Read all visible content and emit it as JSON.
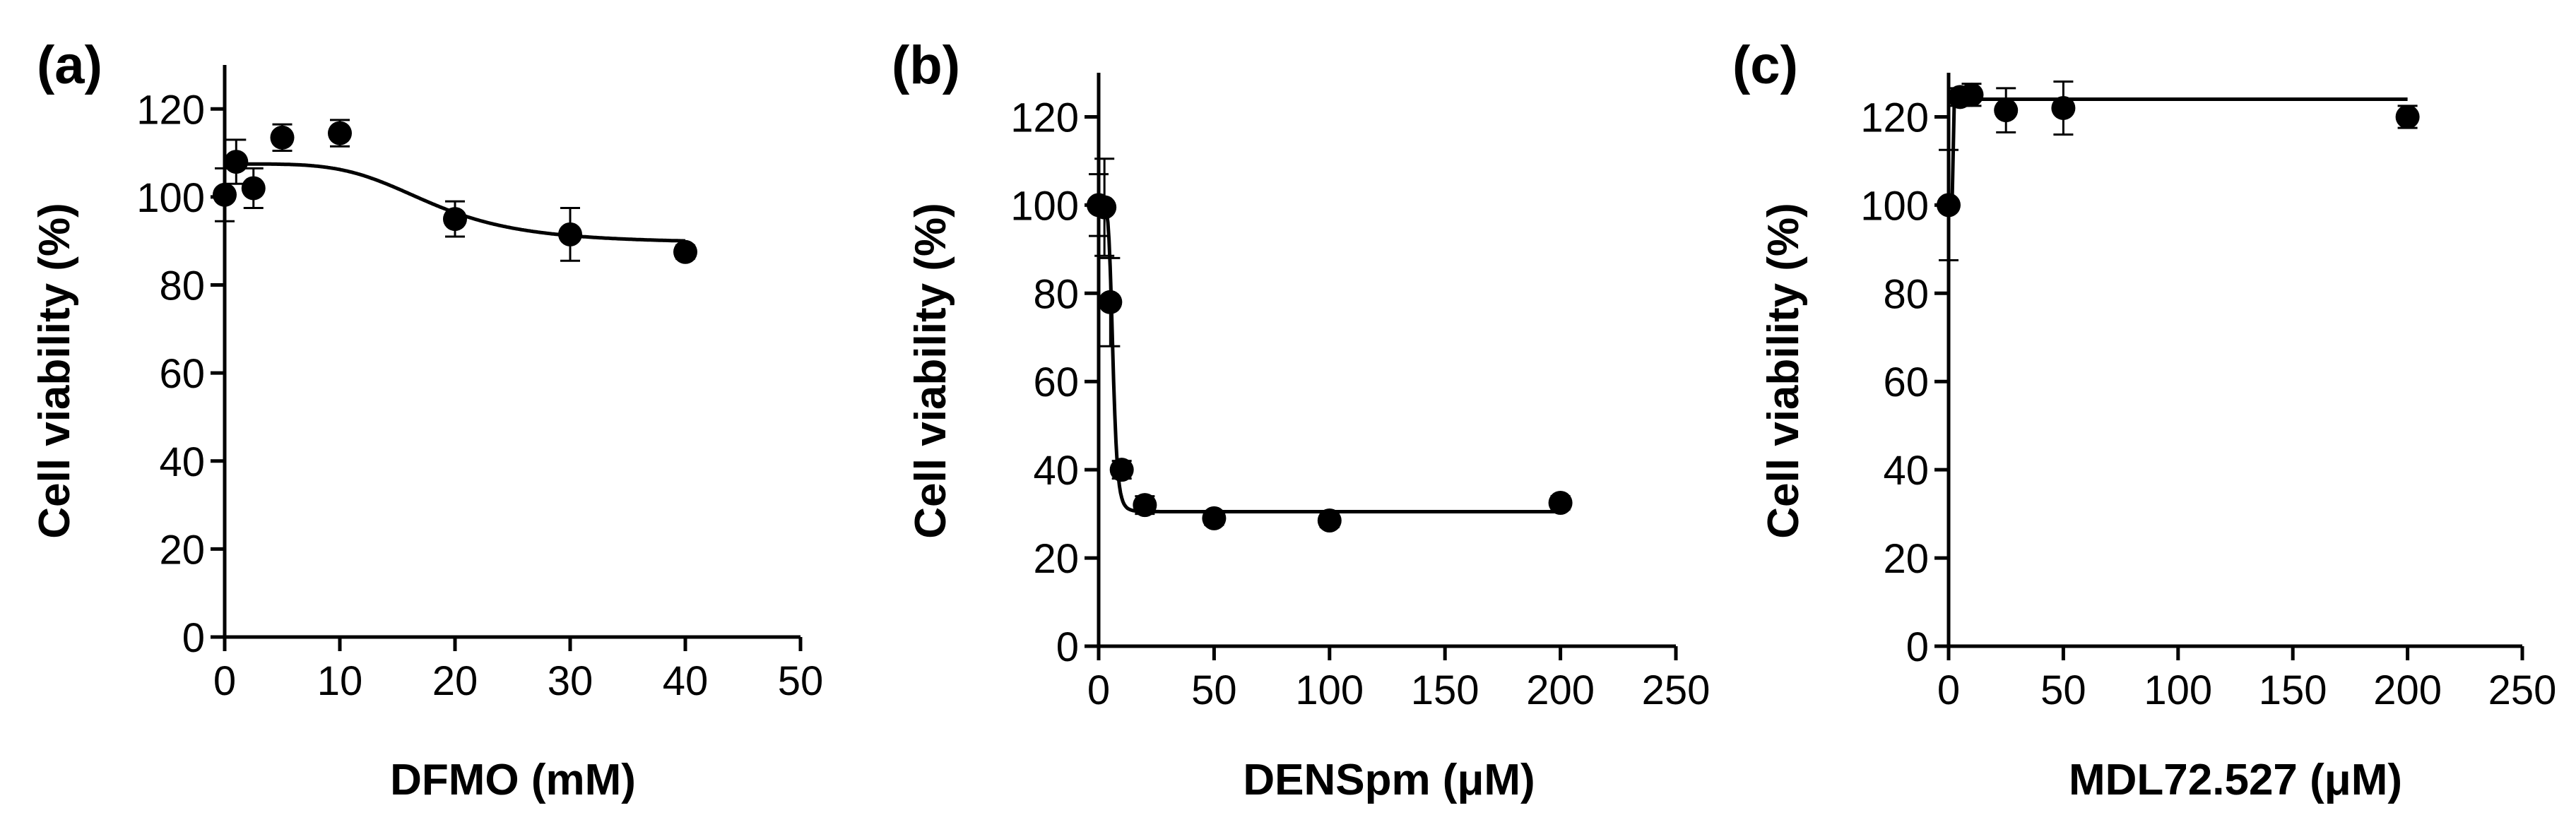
{
  "chart_data": [
    {
      "type": "scatter",
      "panel": "(a)",
      "xlabel": "DFMO (mM)",
      "ylabel": "Cell viability (%)",
      "xlim": [
        0,
        50
      ],
      "ylim": [
        0,
        130
      ],
      "xticks": [
        0,
        10,
        20,
        30,
        40,
        50
      ],
      "yticks": [
        0,
        20,
        40,
        60,
        80,
        100,
        120
      ],
      "series": [
        {
          "name": "DFMO",
          "x": [
            0,
            1,
            2.5,
            5,
            10,
            20,
            30,
            40
          ],
          "y": [
            100.5,
            108,
            102,
            113.5,
            114.5,
            95,
            91.5,
            87.5
          ],
          "err": [
            6,
            5,
            4.5,
            3,
            3,
            4,
            6,
            1.5
          ]
        }
      ],
      "fit": {
        "type": "sigmoid",
        "top": 107.5,
        "bottom": 89.5,
        "x50": 18,
        "slope": 1.1
      },
      "grid": false
    },
    {
      "type": "scatter",
      "panel": "(b)",
      "xlabel": "DENSpm (μM)",
      "ylabel": "Cell viability (%)",
      "xlim": [
        0,
        250
      ],
      "ylim": [
        0,
        130
      ],
      "xticks": [
        0,
        50,
        100,
        150,
        200,
        250
      ],
      "yticks": [
        0,
        20,
        40,
        60,
        80,
        100,
        120
      ],
      "series": [
        {
          "name": "DENSpm",
          "x": [
            0,
            2.5,
            5,
            10,
            20,
            50,
            100,
            200
          ],
          "y": [
            100,
            99.5,
            78,
            40,
            32,
            29,
            28.5,
            32.5
          ],
          "err": [
            7,
            11,
            10,
            2,
            2,
            1.5,
            1.5,
            1.5
          ]
        }
      ],
      "fit": {
        "type": "sigmoid",
        "top": 100,
        "bottom": 30.5,
        "x50": 6.2,
        "slope": 1.6
      },
      "grid": false
    },
    {
      "type": "scatter",
      "panel": "(c)",
      "xlabel": "MDL72.527 (μM)",
      "ylabel": "Cell viability (%)",
      "xlim": [
        0,
        250
      ],
      "ylim": [
        0,
        130
      ],
      "xticks": [
        0,
        50,
        100,
        150,
        200,
        250
      ],
      "yticks": [
        0,
        20,
        40,
        60,
        80,
        100,
        120
      ],
      "series": [
        {
          "name": "MDL72.527",
          "x": [
            0,
            5,
            10,
            25,
            50,
            200
          ],
          "y": [
            100,
            124.5,
            125,
            121.5,
            122,
            120
          ],
          "err": [
            12.5,
            2,
            2.5,
            5,
            6,
            2.5
          ]
        }
      ],
      "fit": {
        "type": "sigmoid",
        "top": 124,
        "bottom": 100,
        "x50": 2,
        "slope": -8
      },
      "grid": false
    }
  ]
}
